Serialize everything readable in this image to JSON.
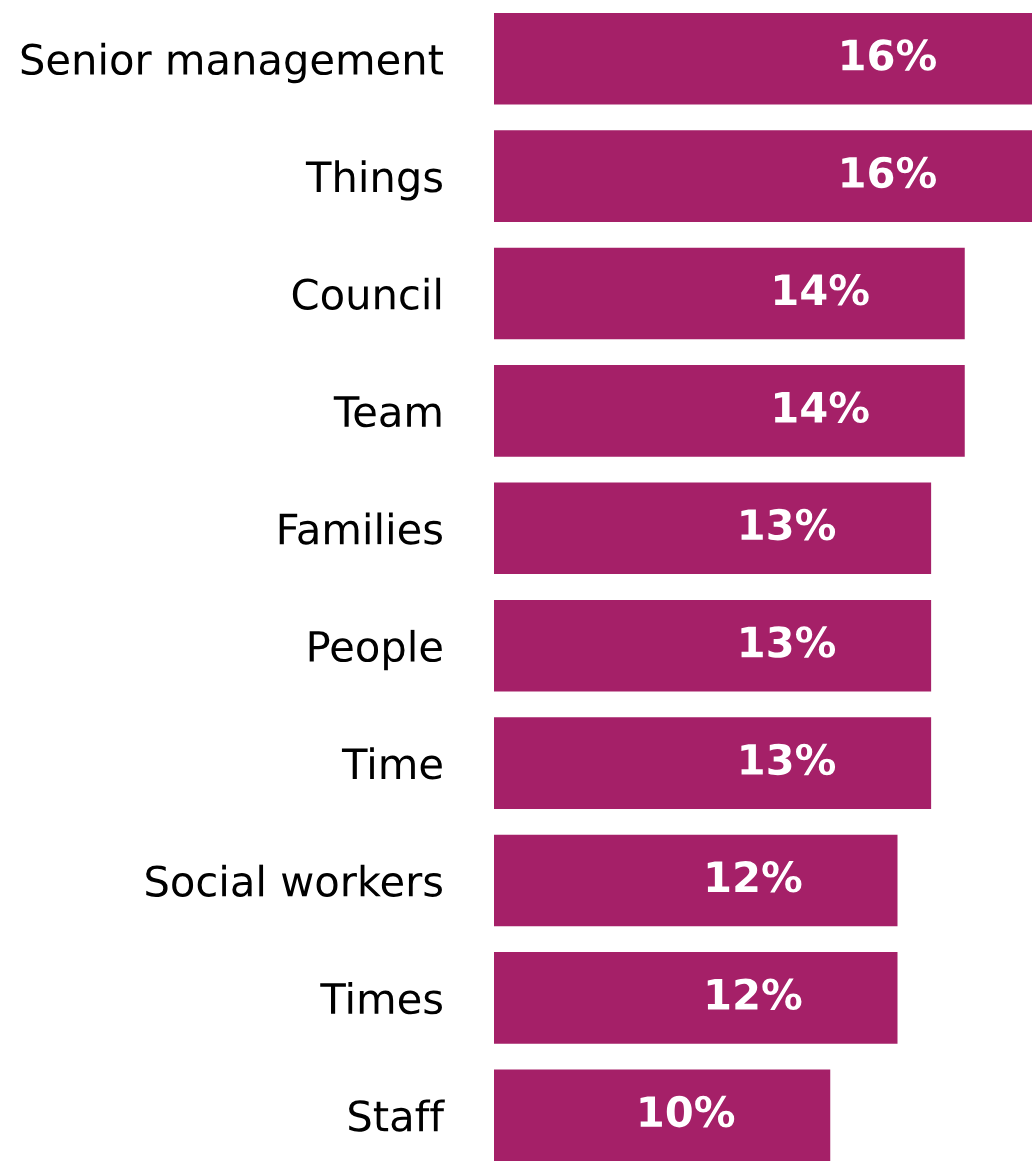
{
  "chart_data": {
    "type": "bar",
    "orientation": "horizontal",
    "categories": [
      "Senior management",
      "Things",
      "Council",
      "Team",
      "Families",
      "People",
      "Time",
      "Social workers",
      "Times",
      "Staff"
    ],
    "values": [
      16,
      16,
      14,
      14,
      13,
      13,
      13,
      12,
      12,
      10
    ],
    "color": "#a52068",
    "data_labels": true,
    "value_labels": [
      "16%",
      "16%",
      "14%",
      "14%",
      "13%",
      "13%",
      "13%",
      "12%",
      "12%",
      "10%"
    ],
    "tick_labels": "y",
    "grid": false,
    "legend": false
  }
}
